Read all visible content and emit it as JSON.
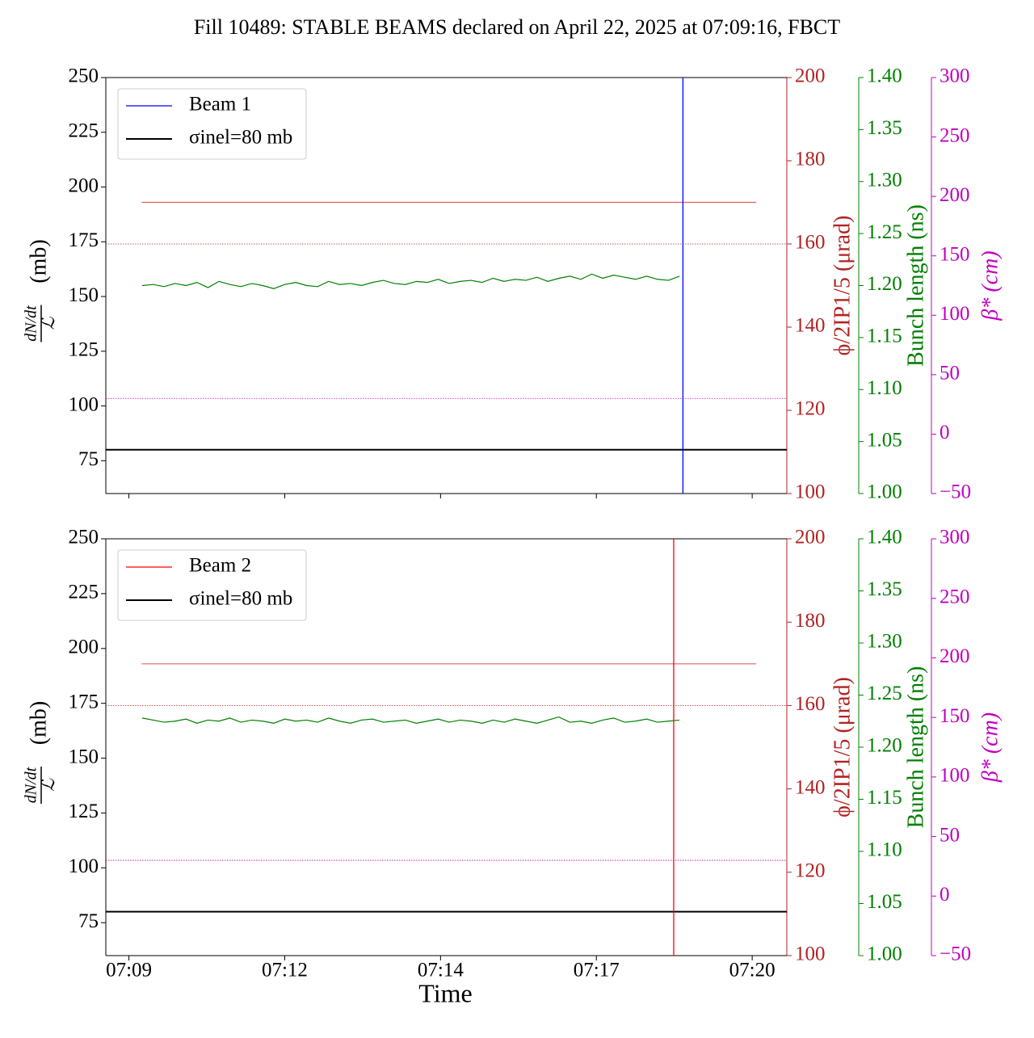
{
  "chart_data": [
    {
      "type": "line",
      "title": "Fill 10489: STABLE BEAMS declared on April 22, 2025 at 07:09:16, FBCT",
      "ylabel": [
        "dN/dt",
        "ℒ",
        "(mb)"
      ],
      "y2label": "ϕ/2IP1/5 (μrad)",
      "y3label": "Bunch length (ns)",
      "y4label": "β* (cm)",
      "axis_colors": {
        "y": "#000000",
        "y2": "#b22222",
        "y3": "#008000",
        "y4": "#c000c0"
      },
      "xlim": [
        549.1,
        560.9
      ],
      "ylim": [
        60,
        250
      ],
      "yticks": [
        75,
        100,
        125,
        150,
        175,
        200,
        225,
        250
      ],
      "y2lim": [
        100,
        200
      ],
      "y2ticks": [
        100,
        120,
        140,
        160,
        180,
        200
      ],
      "y3lim": [
        1.0,
        1.4
      ],
      "y3ticks": [
        {
          "value": 1.0,
          "label": "1.00"
        },
        1.05,
        {
          "value": 1.1,
          "label": "1.10"
        },
        1.15,
        {
          "value": 1.2,
          "label": "1.20"
        },
        1.25,
        {
          "value": 1.3,
          "label": "1.30"
        },
        1.35,
        {
          "value": 1.4,
          "label": "1.40"
        }
      ],
      "y4lim": [
        -50,
        300
      ],
      "y4ticks": [
        {
          "value": -50,
          "label": "−50"
        },
        0,
        50,
        100,
        150,
        200,
        250,
        300
      ],
      "legend": "upper left",
      "vlines": [
        {
          "name": "Beam 1",
          "color": "#0000ff",
          "x": 559.1
        }
      ],
      "hlines": [
        {
          "name": "σinel=80 mb",
          "color": "#000000",
          "value": 80,
          "axis": "y",
          "style": "solid"
        },
        {
          "color": "#b22222",
          "value": 160,
          "axis": "y2",
          "style": "dotted"
        },
        {
          "color": "#c000c0",
          "value": 30,
          "axis": "y4",
          "style": "dotted"
        }
      ],
      "series": [
        {
          "color": "#e06060",
          "axis": "y2",
          "x": [
            549.72,
            560.37
          ],
          "values": [
            170,
            170
          ]
        },
        {
          "color": "#008000",
          "axis": "y3",
          "x": [
            549.73,
            549.92,
            550.11,
            550.3,
            550.49,
            550.68,
            550.87,
            551.06,
            551.25,
            551.44,
            551.63,
            551.82,
            552.01,
            552.2,
            552.39,
            552.58,
            552.77,
            552.96,
            553.15,
            553.34,
            553.53,
            553.72,
            553.91,
            554.1,
            554.29,
            554.48,
            554.67,
            554.86,
            555.05,
            555.24,
            555.43,
            555.62,
            555.81,
            556.0,
            556.19,
            556.38,
            556.57,
            556.76,
            556.95,
            557.14,
            557.33,
            557.52,
            557.71,
            557.9,
            558.09,
            558.28,
            558.47,
            558.66,
            558.85,
            559.04
          ],
          "values": [
            1.2,
            1.201,
            1.199,
            1.202,
            1.2,
            1.203,
            1.198,
            1.204,
            1.201,
            1.199,
            1.202,
            1.2,
            1.197,
            1.201,
            1.203,
            1.2,
            1.199,
            1.204,
            1.201,
            1.202,
            1.2,
            1.203,
            1.205,
            1.202,
            1.201,
            1.204,
            1.203,
            1.206,
            1.202,
            1.204,
            1.205,
            1.203,
            1.207,
            1.204,
            1.206,
            1.205,
            1.208,
            1.204,
            1.207,
            1.209,
            1.206,
            1.211,
            1.207,
            1.21,
            1.208,
            1.206,
            1.209,
            1.206,
            1.205,
            1.209
          ]
        }
      ]
    },
    {
      "type": "line",
      "ylabel": [
        "dN/dt",
        "ℒ",
        "(mb)"
      ],
      "y2label": "ϕ/2IP1/5 (μrad)",
      "y3label": "Bunch length (ns)",
      "y4label": "β* (cm)",
      "xlabel": "Time",
      "axis_colors": {
        "y": "#000000",
        "y2": "#b22222",
        "y3": "#008000",
        "y4": "#c000c0"
      },
      "xlim": [
        549.1,
        560.9
      ],
      "xticks": [
        {
          "value": 549.5,
          "label": "07:09"
        },
        {
          "value": 552.2,
          "label": "07:12"
        },
        {
          "value": 554.9,
          "label": "07:14"
        },
        {
          "value": 557.6,
          "label": "07:17"
        },
        {
          "value": 560.3,
          "label": "07:20"
        }
      ],
      "ylim": [
        60,
        250
      ],
      "yticks": [
        75,
        100,
        125,
        150,
        175,
        200,
        225,
        250
      ],
      "y2lim": [
        100,
        200
      ],
      "y2ticks": [
        100,
        120,
        140,
        160,
        180,
        200
      ],
      "y3lim": [
        1.0,
        1.4
      ],
      "y3ticks": [
        {
          "value": 1.0,
          "label": "1.00"
        },
        1.05,
        {
          "value": 1.1,
          "label": "1.10"
        },
        1.15,
        {
          "value": 1.2,
          "label": "1.20"
        },
        1.25,
        {
          "value": 1.3,
          "label": "1.30"
        },
        1.35,
        {
          "value": 1.4,
          "label": "1.40"
        }
      ],
      "y4lim": [
        -50,
        300
      ],
      "y4ticks": [
        {
          "value": -50,
          "label": "−50"
        },
        0,
        50,
        100,
        150,
        200,
        250,
        300
      ],
      "legend": "upper left",
      "vlines": [
        {
          "name": "Beam 2",
          "color": "#ff0000",
          "x": 558.94
        }
      ],
      "hlines": [
        {
          "name": "σinel=80 mb",
          "color": "#000000",
          "value": 80,
          "axis": "y",
          "style": "solid"
        },
        {
          "color": "#b22222",
          "value": 160,
          "axis": "y2",
          "style": "dotted"
        },
        {
          "color": "#c000c0",
          "value": 30,
          "axis": "y4",
          "style": "dotted"
        }
      ],
      "series": [
        {
          "color": "#e06060",
          "axis": "y2",
          "x": [
            549.72,
            560.37
          ],
          "values": [
            170,
            170
          ]
        },
        {
          "color": "#008000",
          "axis": "y3",
          "x": [
            549.73,
            549.92,
            550.11,
            550.3,
            550.49,
            550.68,
            550.87,
            551.06,
            551.25,
            551.44,
            551.63,
            551.82,
            552.01,
            552.2,
            552.39,
            552.58,
            552.77,
            552.96,
            553.15,
            553.34,
            553.53,
            553.72,
            553.91,
            554.1,
            554.29,
            554.48,
            554.67,
            554.86,
            555.05,
            555.24,
            555.43,
            555.62,
            555.81,
            556.0,
            556.19,
            556.38,
            556.57,
            556.76,
            556.95,
            557.14,
            557.33,
            557.52,
            557.71,
            557.9,
            558.09,
            558.28,
            558.47,
            558.66,
            558.85,
            559.04
          ],
          "values": [
            1.228,
            1.226,
            1.224,
            1.225,
            1.227,
            1.223,
            1.226,
            1.225,
            1.228,
            1.224,
            1.226,
            1.225,
            1.223,
            1.227,
            1.225,
            1.226,
            1.224,
            1.228,
            1.225,
            1.223,
            1.226,
            1.227,
            1.224,
            1.225,
            1.226,
            1.223,
            1.225,
            1.227,
            1.224,
            1.226,
            1.225,
            1.223,
            1.226,
            1.224,
            1.227,
            1.225,
            1.223,
            1.226,
            1.229,
            1.224,
            1.225,
            1.223,
            1.226,
            1.228,
            1.224,
            1.225,
            1.227,
            1.224,
            1.225,
            1.226
          ]
        }
      ]
    }
  ]
}
